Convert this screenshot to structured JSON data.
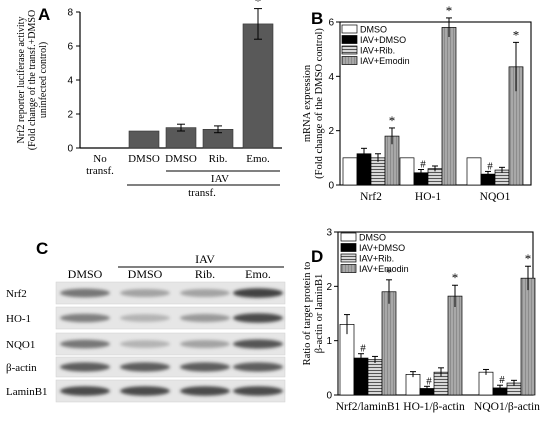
{
  "panel_labels": [
    "A",
    "B",
    "C",
    "D"
  ],
  "chart_data": [
    {
      "panel": "A",
      "type": "bar",
      "ylabel_lines": [
        "Nrf2 reporter luciferase activity",
        "(Fold change of the transf.+DMSO",
        "uninfected control)"
      ],
      "ylim": [
        0,
        8
      ],
      "yticks": [
        0,
        2,
        4,
        6,
        8
      ],
      "categories": [
        "No transf.",
        "DMSO",
        "DMSO",
        "Rib.",
        "Emo."
      ],
      "category_lines": [
        [
          "No",
          "transf."
        ],
        [
          "DMSO"
        ],
        [
          "DMSO"
        ],
        [
          "Rib."
        ],
        [
          "Emo."
        ]
      ],
      "values": [
        0,
        1.0,
        1.2,
        1.1,
        7.3
      ],
      "errors": [
        0,
        0,
        0.2,
        0.2,
        0.9
      ],
      "significance": [
        "",
        "",
        "",
        "",
        "*"
      ],
      "group_labels": [
        "IAV",
        "transf."
      ],
      "bar_color": "#595959"
    },
    {
      "panel": "B",
      "type": "bar",
      "ylabel_lines": [
        "mRNA expression",
        "(Fold change of the DMSO control)"
      ],
      "ylim": [
        0,
        6
      ],
      "yticks": [
        0,
        2,
        4,
        6
      ],
      "categories": [
        "Nrf2",
        "HO-1",
        "NQO1"
      ],
      "series": [
        {
          "name": "DMSO",
          "values": [
            1.0,
            1.0,
            1.0
          ],
          "errors": [
            0,
            0,
            0
          ],
          "marks": [
            "",
            "",
            ""
          ],
          "style": "white"
        },
        {
          "name": "IAV+DMSO",
          "values": [
            1.15,
            0.45,
            0.4
          ],
          "errors": [
            0.2,
            0.12,
            0.1
          ],
          "marks": [
            "",
            "#",
            "#"
          ],
          "style": "black"
        },
        {
          "name": "IAV+Rib.",
          "values": [
            1.0,
            0.6,
            0.55
          ],
          "errors": [
            0.15,
            0.1,
            0.1
          ],
          "marks": [
            "",
            "",
            ""
          ],
          "style": "hatch"
        },
        {
          "name": "IAV+Emodin",
          "values": [
            1.8,
            5.8,
            4.35
          ],
          "errors": [
            0.3,
            0.35,
            0.9
          ],
          "marks": [
            "*",
            "*",
            "*"
          ],
          "style": "gray"
        }
      ]
    },
    {
      "panel": "D",
      "type": "bar",
      "ylabel_lines": [
        "Ratio of target protein to",
        "β-actin or laminB1"
      ],
      "ylim": [
        0,
        3
      ],
      "yticks": [
        0,
        1,
        2,
        3
      ],
      "categories": [
        "Nrf2/laminB1",
        "HO-1/β-actin",
        "NQO1/β-actin"
      ],
      "series": [
        {
          "name": "DMSO",
          "values": [
            1.3,
            0.38,
            0.42
          ],
          "errors": [
            0.18,
            0.05,
            0.05
          ],
          "marks": [
            "",
            "",
            ""
          ],
          "style": "white"
        },
        {
          "name": "IAV+DMSO",
          "values": [
            0.68,
            0.12,
            0.13
          ],
          "errors": [
            0.08,
            0.04,
            0.05
          ],
          "marks": [
            "#",
            "#",
            "#"
          ],
          "style": "black"
        },
        {
          "name": "IAV+Rib.",
          "values": [
            0.65,
            0.42,
            0.22
          ],
          "errors": [
            0.06,
            0.08,
            0.05
          ],
          "marks": [
            "",
            "",
            ""
          ],
          "style": "hatch"
        },
        {
          "name": "IAV+Emodin",
          "values": [
            1.9,
            1.82,
            2.15
          ],
          "errors": [
            0.22,
            0.2,
            0.22
          ],
          "marks": [
            "*",
            "*",
            "*"
          ],
          "style": "gray"
        }
      ]
    }
  ],
  "blot": {
    "panel": "C",
    "group_label": "IAV",
    "lanes": [
      "DMSO",
      "DMSO",
      "Rib.",
      "Emo."
    ],
    "rows": [
      {
        "label": "Nrf2",
        "intensity": [
          0.55,
          0.3,
          0.3,
          0.85
        ]
      },
      {
        "label": "HO-1",
        "intensity": [
          0.5,
          0.2,
          0.35,
          0.8
        ]
      },
      {
        "label": "NQO1",
        "intensity": [
          0.55,
          0.2,
          0.3,
          0.75
        ]
      },
      {
        "label": "β-actin",
        "intensity": [
          0.7,
          0.7,
          0.7,
          0.7
        ]
      },
      {
        "label": "LaminB1",
        "intensity": [
          0.8,
          0.8,
          0.8,
          0.8
        ]
      }
    ]
  },
  "colors": {
    "white": "#ffffff",
    "black": "#000000",
    "hatch": "#b5b5b5",
    "gray": "#a6a6a6",
    "bar": "#595959"
  }
}
